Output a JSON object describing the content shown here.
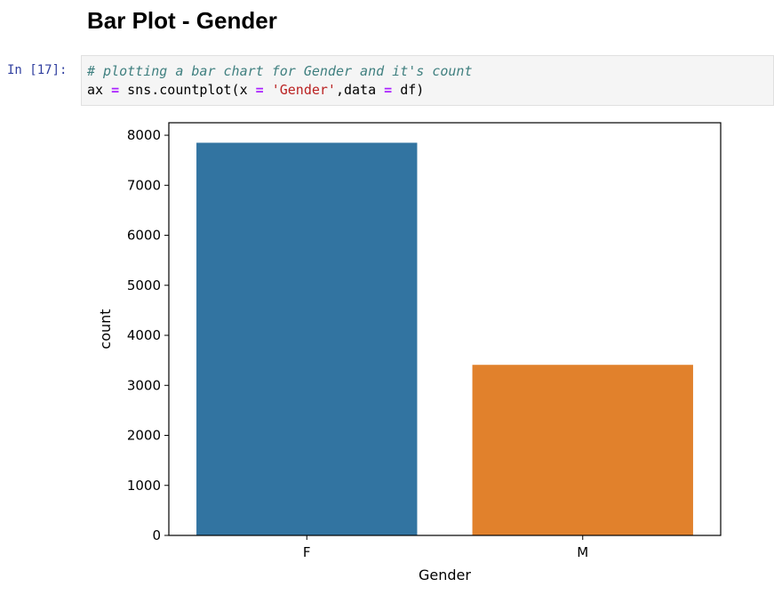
{
  "heading": "Bar Plot - Gender",
  "cell": {
    "prompt": "In [17]:",
    "line1_comment": "# plotting a bar chart for Gender and it's count",
    "line2": {
      "part1": "ax ",
      "eq1": "=",
      "part2": " sns.countplot(x ",
      "eq2": "=",
      "part3": " ",
      "str": "'Gender'",
      "part4": ",data ",
      "eq3": "=",
      "part5": " df)"
    }
  },
  "chart_data": {
    "type": "bar",
    "categories": [
      "F",
      "M"
    ],
    "values": [
      7850,
      3410
    ],
    "colors": [
      "#3274a1",
      "#e1812c"
    ],
    "xlabel": "Gender",
    "ylabel": "count",
    "ylim": [
      0,
      8250
    ],
    "yticks": [
      0,
      1000,
      2000,
      3000,
      4000,
      5000,
      6000,
      7000,
      8000
    ],
    "grid": false
  }
}
